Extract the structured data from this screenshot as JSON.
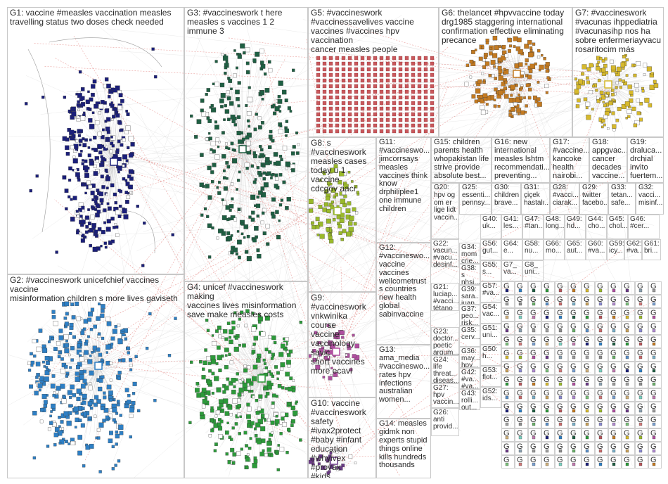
{
  "graph": {
    "groups": [
      {
        "id": "G1",
        "label": "G1: vaccine #measles vaccination measles\ntravelling status two doses check needed",
        "color": "#1b1f7a"
      },
      {
        "id": "G2",
        "label": "G2: #vaccineswork unicefchief vaccines vaccine\nmisinformation children s more lives gaviseth",
        "color": "#2e7fc4"
      },
      {
        "id": "G3",
        "label": "G3: #vaccineswork t here\nmeasles s vaccines 1 2 immune 3",
        "color": "#1f5f43"
      },
      {
        "id": "G4",
        "label": "G4: unicef #vaccineswork making\nvaccines lives misinformation\nsave make measles costs",
        "color": "#2c9a3a"
      },
      {
        "id": "G5",
        "label": "G5: #vaccineswork\n#vaccinessavelives vaccine\nvaccines #vaccines hpv vaccination\ncancer measles people",
        "color": "#b7565a"
      },
      {
        "id": "G6",
        "label": "G6: thelancet #hpvvaccine today\ndrg1985 staggering international\nconfirmation effective eliminating\nprecance",
        "color": "#c37a21"
      },
      {
        "id": "G7",
        "label": "G7: #vaccineswork\n#vacunas ihppediatria\n#vacunasihp nos ha\nsobre enfermeriayvacu\nrosaritocim más",
        "color": "#d6b92c"
      },
      {
        "id": "G8",
        "label": "G8: s\n#vaccineswork\nmeasles cases\ntoday u 1 vaccine\ncdcgov aacr",
        "color": "#9ab92a"
      },
      {
        "id": "G9",
        "label": "G9:\n#vaccineswork\nvnkwinika course\nvaccine\nvaccinology savic\nshort vaccines\nmore ecavi",
        "color": "#b04fa0"
      },
      {
        "id": "G10",
        "label": "G10: vaccine\n#vaccineswork\nsafety\n#ivax2protect\n#baby #infant\neducation\n#whyivex #provax\n#kids",
        "color": "#6b3a87"
      },
      {
        "id": "G11",
        "label": "G11:\n#vaccineswo...\njimcorrsays\nmeasles\nvaccines think\nknow\ndrphiliplee1\none immune\nchildren",
        "color": "#8aa0b0"
      },
      {
        "id": "G12",
        "label": "G12:\n#vaccineswo...\nvaccine\nvaccines\nwellcometrust\ns countries\nnew health\nglobal\nsabinvaccine",
        "color": "#9a9a9a"
      },
      {
        "id": "G13",
        "label": "G13:\nama_media\n#vaccineswo...\nrates hpv\ninfections\naustralian\nwomen...",
        "color": "#a0a0a0"
      },
      {
        "id": "G14",
        "label": "G14: measles\ngidmk non\nexperts stupid\nthings online\nkills hundreds\nthousands",
        "color": "#8c8c8c"
      },
      {
        "id": "G15",
        "label": "G15: children\nparents health\nwhopakistan life\nstrive provide\nabsolute best...",
        "color": "#6ab06a"
      },
      {
        "id": "G16",
        "label": "G16: new\ninternational\nmeasles lshtm\nrecommendati...\npreventing...",
        "color": "#5a8fc8"
      },
      {
        "id": "G17",
        "label": "G17:\n#vaccine...\nkancoke\nhealth\nnairobi...",
        "color": "#c86a6a"
      },
      {
        "id": "G18",
        "label": "G18:\nappgvac...\ncancer\ndecades\nvaccine...",
        "color": "#7ab0c8"
      },
      {
        "id": "G19",
        "label": "G19:\ndraluca...\ndrchial\ninvito\nfuertem...",
        "color": "#c8a05a"
      },
      {
        "id": "G20",
        "label": "G20:\nhpv og\nom er\nlige lidt\nvaccin...",
        "color": "#8a8ad0"
      },
      {
        "id": "G25",
        "label": "G25:\nessenti...\npennsy...",
        "color": "#b08ad0"
      },
      {
        "id": "G30",
        "label": "G30:\nchildren\nbrave...",
        "color": "#7ac07a"
      },
      {
        "id": "G31",
        "label": "G31:\nçiçek\nhastalı...",
        "color": "#d07a7a"
      },
      {
        "id": "G28",
        "label": "G28:\n#vacci...\nciarak...",
        "color": "#7aa0d0"
      },
      {
        "id": "G29",
        "label": "G29:\ntwitter\nfacebo...",
        "color": "#d0b07a"
      },
      {
        "id": "G33",
        "label": "G33:\ntetan...\nsafe...",
        "color": "#7ad0c0"
      },
      {
        "id": "G32",
        "label": "G32:\nvacci...\nmisinf...",
        "color": "#c07ab0"
      }
    ],
    "small_labels": [
      "G22:\nvacun...\n#vacu...\ndesinf...",
      "G38:\ns\nnhsi...",
      "G21:\nluciap...\n#vacci...\ntétano",
      "G39:\nsara...\njuan...",
      "G23:\ndoctor...\npoetic\nargum...",
      "G37:\npeo...\nrisk...",
      "G24:\nlife\nthreat...\ndiseas...",
      "G35:\ncerv...",
      "G27:\nhpv\nvaccin...",
      "G36:\nmay...\nhpv...",
      "G26:\nanti\nprovid...",
      "G42:\n#va...\n#va...",
      "G43:\nrolli...\nout...",
      "G34:\nmom\ncrie...",
      "G40:\nuk...",
      "G41:\nles...",
      "G47:\n#tan...",
      "G48:\nlong...",
      "G49:\nhd...",
      "G44:\ncho...",
      "G45:\nchol...",
      "G46:\n#cer...",
      "G56:\ngut...",
      "G64:\ne...",
      "G58:\nnu...",
      "G66:\nmo...",
      "G65:\naut...",
      "G60:\n#va...",
      "G59:\nicy...",
      "G62:\n#va...",
      "G61:\nbri...",
      "G55:\ns...",
      "G57:\n#va...",
      "G54:\nvac...",
      "G51:\nuni...",
      "G50:\nh...",
      "G53:\nflot...",
      "G52:\nids...",
      "G7_\nva...",
      "G8_\nuni..."
    ],
    "tiny_tile_label": "G"
  }
}
